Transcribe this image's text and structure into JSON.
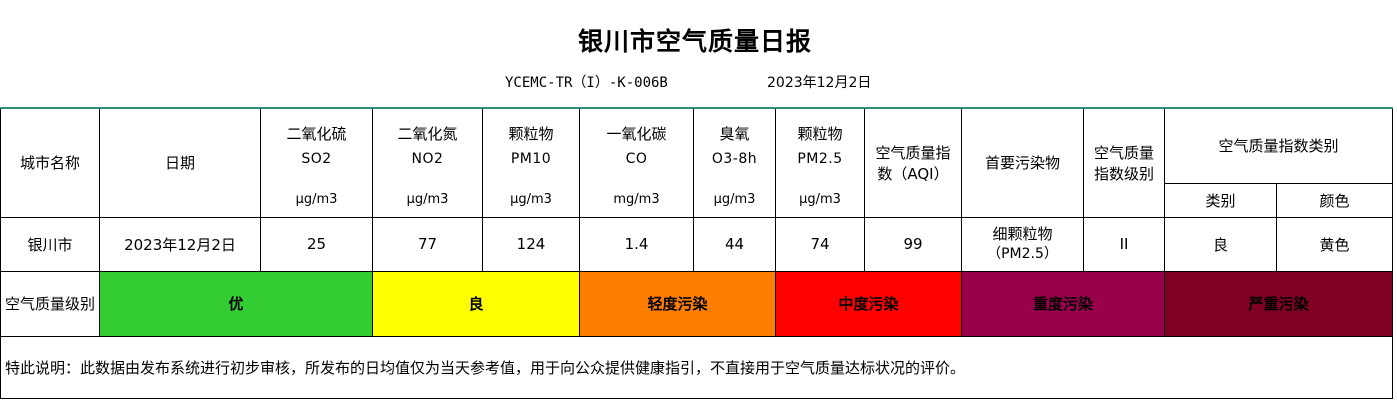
{
  "header": {
    "title": "银川市空气质量日报",
    "code": "YCEMC-TR（I）-K-006B",
    "date": "2023年12月2日"
  },
  "columns": {
    "city": "城市名称",
    "date": "日期",
    "so2": {
      "name": "二氧化硫",
      "code": "SO2",
      "unit": "μg/m3"
    },
    "no2": {
      "name": "二氧化氮",
      "code": "NO2",
      "unit": "μg/m3"
    },
    "pm10": {
      "name": "颗粒物",
      "code": "PM10",
      "unit": "μg/m3"
    },
    "co": {
      "name": "一氧化碳",
      "code": "CO",
      "unit": "mg/m3"
    },
    "o3": {
      "name": "臭氧",
      "code": "O3-8h",
      "unit": "μg/m3"
    },
    "pm25": {
      "name": "颗粒物",
      "code": "PM2.5",
      "unit": "μg/m3"
    },
    "aqi": "空气质量指数（AQI）",
    "primary": "首要污染物",
    "level": "空气质量指数级别",
    "category": "空气质量指数类别",
    "category_type": "类别",
    "category_color": "颜色"
  },
  "row": {
    "city": "银川市",
    "date": "2023年12月2日",
    "so2": "25",
    "no2": "77",
    "pm10": "124",
    "co": "1.4",
    "o3": "44",
    "pm25": "74",
    "aqi": "99",
    "primary_line1": "细颗粒物",
    "primary_line2": "（PM2.5）",
    "level": "II",
    "category_type": "良",
    "category_color": "黄色"
  },
  "legend": {
    "label": "空气质量级别",
    "levels": [
      {
        "label": "优",
        "color": "#33cc33",
        "text_color": "#000000"
      },
      {
        "label": "良",
        "color": "#ffff00",
        "text_color": "#000000"
      },
      {
        "label": "轻度污染",
        "color": "#ff7e00",
        "text_color": "#000000"
      },
      {
        "label": "中度污染",
        "color": "#ff0000",
        "text_color": "#000000"
      },
      {
        "label": "重度污染",
        "color": "#99004c",
        "text_color": "#000000"
      },
      {
        "label": "严重污染",
        "color": "#7e0023",
        "text_color": "#000000"
      }
    ]
  },
  "note": "特此说明：此数据由发布系统进行初步审核，所发布的日均值仅为当天参考值，用于向公众提供健康指引，不直接用于空气质量达标状况的评价。",
  "colors": {
    "accent_line": "#2e8b7a"
  }
}
